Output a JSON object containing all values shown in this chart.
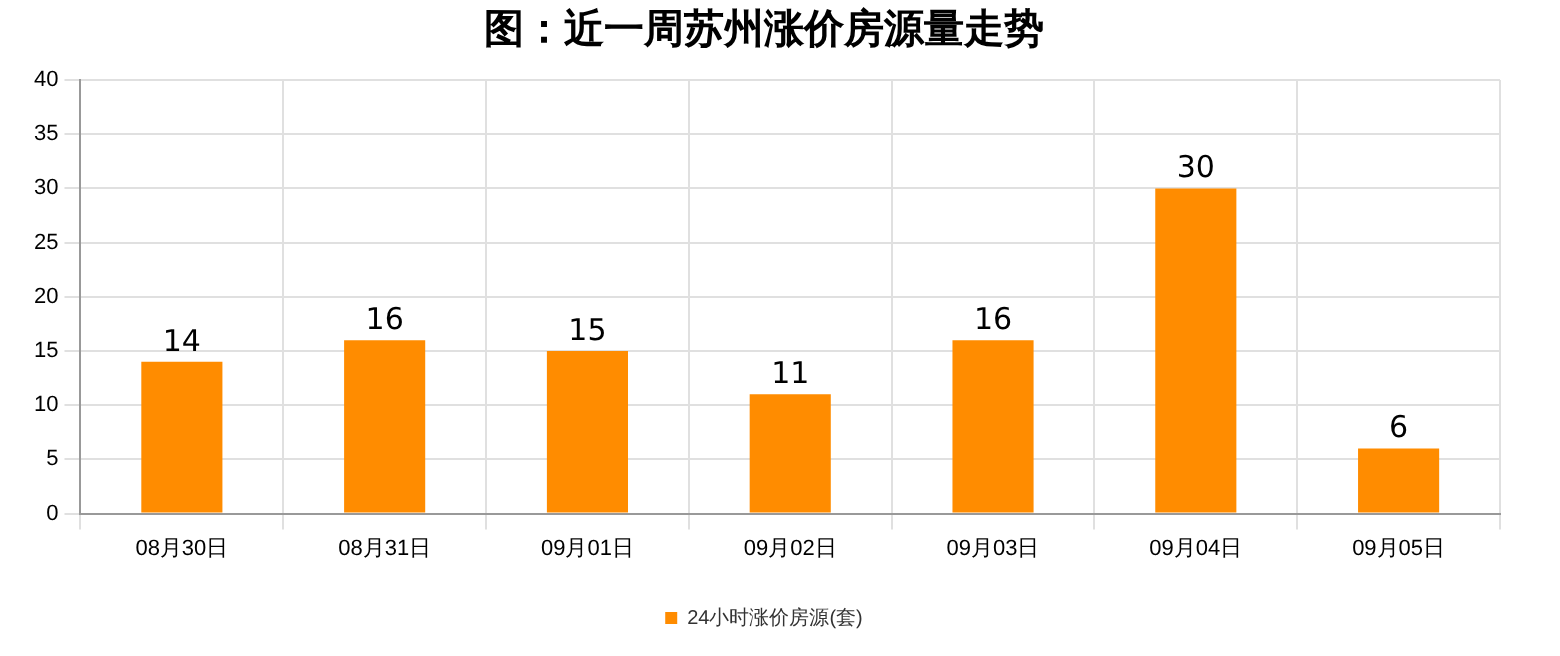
{
  "chart_data": {
    "type": "bar",
    "title": "图：近一周苏州涨价房源量走势",
    "categories": [
      "08月30日",
      "08月31日",
      "09月01日",
      "09月02日",
      "09月03日",
      "09月04日",
      "09月05日"
    ],
    "series": [
      {
        "name": "24小时涨价房源(套)",
        "color": "#ff8c00",
        "values": [
          14,
          16,
          15,
          11,
          16,
          30,
          6
        ]
      }
    ],
    "ylim": [
      0,
      40
    ],
    "yticks": [
      0,
      5,
      10,
      15,
      20,
      25,
      30,
      35,
      40
    ],
    "grid": true,
    "legend": "bottom",
    "data_labels": true
  }
}
